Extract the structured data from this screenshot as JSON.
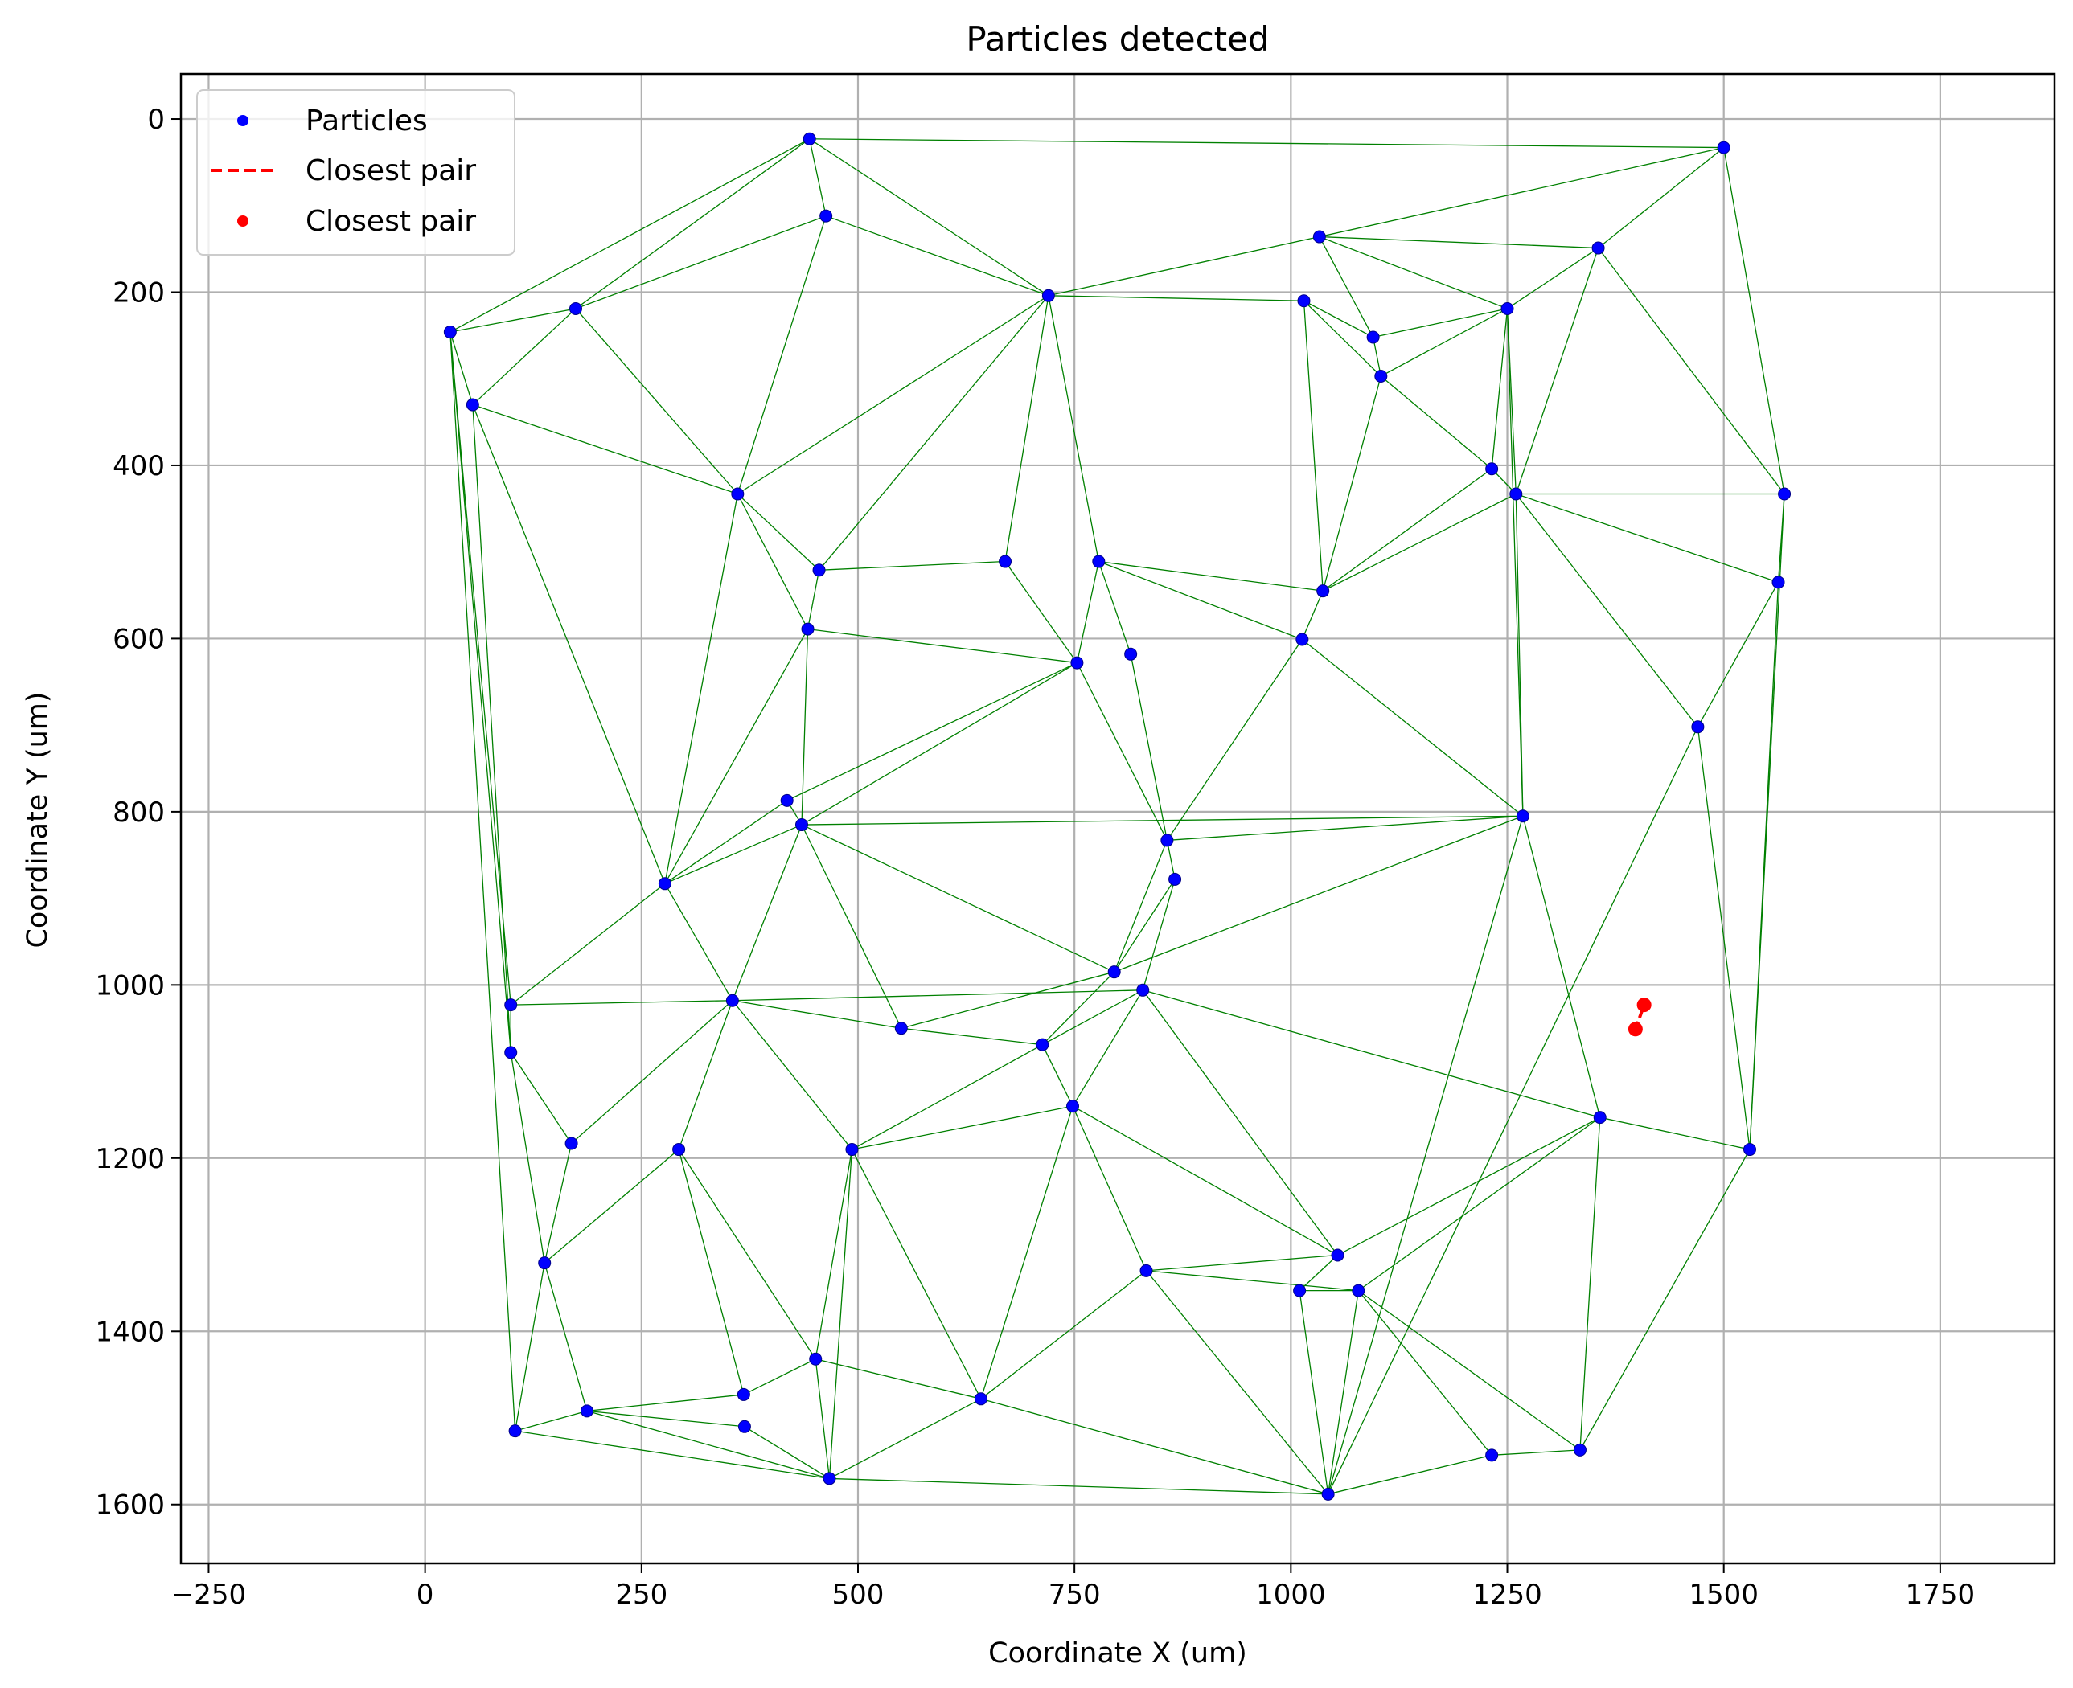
{
  "chart_data": {
    "type": "scatter",
    "title": "Particles detected",
    "xlabel": "Coordinate X (um)",
    "ylabel": "Coordinate Y (um)",
    "xlim": [
      -282,
      1882
    ],
    "ylim": [
      1668,
      -52
    ],
    "y_inverted": true,
    "grid": true,
    "legend_position": "top-left",
    "x_ticks": [
      -250,
      0,
      250,
      500,
      750,
      1000,
      1250,
      1500,
      1750
    ],
    "y_ticks": [
      0,
      200,
      400,
      600,
      800,
      1000,
      1200,
      1400,
      1600
    ],
    "legend": [
      {
        "label": "Particles",
        "marker": "dot",
        "color": "#0000ff"
      },
      {
        "label": "Closest pair",
        "marker": "dashed-line",
        "color": "#ff0000"
      },
      {
        "label": "Closest pair",
        "marker": "dot",
        "color": "#ff0000"
      }
    ],
    "colors": {
      "particles": "#0000ff",
      "particle_edge": "#00008b",
      "triangulation": "#008000",
      "closest_pair": "#ff0000",
      "grid": "#b0b0b0"
    },
    "particles": [
      [
        444,
        23
      ],
      [
        1500,
        33
      ],
      [
        463,
        112
      ],
      [
        1033,
        136
      ],
      [
        1355,
        149
      ],
      [
        720,
        204
      ],
      [
        1015,
        210
      ],
      [
        174,
        219
      ],
      [
        1250,
        219
      ],
      [
        29,
        246
      ],
      [
        1095,
        252
      ],
      [
        1104,
        297
      ],
      [
        55,
        330
      ],
      [
        1232,
        404
      ],
      [
        361,
        433
      ],
      [
        1260,
        433
      ],
      [
        1570,
        433
      ],
      [
        455,
        521
      ],
      [
        670,
        511
      ],
      [
        778,
        511
      ],
      [
        1037,
        545
      ],
      [
        1563,
        535
      ],
      [
        442,
        589
      ],
      [
        815,
        618
      ],
      [
        753,
        628
      ],
      [
        1013,
        601
      ],
      [
        1470,
        702
      ],
      [
        418,
        787
      ],
      [
        435,
        815
      ],
      [
        1268,
        805
      ],
      [
        857,
        833
      ],
      [
        277,
        883
      ],
      [
        866,
        878
      ],
      [
        796,
        985
      ],
      [
        99,
        1023
      ],
      [
        829,
        1006
      ],
      [
        355,
        1018
      ],
      [
        550,
        1050
      ],
      [
        713,
        1069
      ],
      [
        99,
        1078
      ],
      [
        748,
        1140
      ],
      [
        1357,
        1153
      ],
      [
        169,
        1183
      ],
      [
        293,
        1190
      ],
      [
        493,
        1190
      ],
      [
        1530,
        1190
      ],
      [
        138,
        1321
      ],
      [
        1054,
        1312
      ],
      [
        833,
        1330
      ],
      [
        1010,
        1353
      ],
      [
        1078,
        1353
      ],
      [
        451,
        1432
      ],
      [
        368,
        1473
      ],
      [
        642,
        1478
      ],
      [
        187,
        1492
      ],
      [
        369,
        1510
      ],
      [
        104,
        1515
      ],
      [
        1334,
        1537
      ],
      [
        1232,
        1543
      ],
      [
        467,
        1570
      ],
      [
        1043,
        1588
      ]
    ],
    "closest_pair": [
      [
        1398,
        1051
      ],
      [
        1408,
        1023
      ]
    ],
    "edges": [
      [
        0,
        1
      ],
      [
        0,
        2
      ],
      [
        0,
        9
      ],
      [
        0,
        7
      ],
      [
        0,
        5
      ],
      [
        1,
        3
      ],
      [
        1,
        4
      ],
      [
        1,
        16
      ],
      [
        2,
        7
      ],
      [
        2,
        5
      ],
      [
        2,
        14
      ],
      [
        3,
        5
      ],
      [
        3,
        8
      ],
      [
        3,
        10
      ],
      [
        3,
        4
      ],
      [
        4,
        8
      ],
      [
        4,
        15
      ],
      [
        4,
        16
      ],
      [
        5,
        6
      ],
      [
        5,
        14
      ],
      [
        5,
        17
      ],
      [
        5,
        18
      ],
      [
        5,
        19
      ],
      [
        6,
        10
      ],
      [
        6,
        11
      ],
      [
        6,
        20
      ],
      [
        7,
        9
      ],
      [
        7,
        12
      ],
      [
        7,
        14
      ],
      [
        8,
        10
      ],
      [
        8,
        11
      ],
      [
        8,
        13
      ],
      [
        8,
        15
      ],
      [
        8,
        29
      ],
      [
        9,
        12
      ],
      [
        9,
        34
      ],
      [
        9,
        39
      ],
      [
        9,
        56
      ],
      [
        10,
        11
      ],
      [
        11,
        13
      ],
      [
        11,
        20
      ],
      [
        12,
        14
      ],
      [
        12,
        31
      ],
      [
        12,
        39
      ],
      [
        13,
        15
      ],
      [
        13,
        20
      ],
      [
        14,
        17
      ],
      [
        14,
        22
      ],
      [
        14,
        31
      ],
      [
        15,
        20
      ],
      [
        15,
        16
      ],
      [
        15,
        21
      ],
      [
        15,
        26
      ],
      [
        15,
        29
      ],
      [
        16,
        21
      ],
      [
        16,
        45
      ],
      [
        17,
        18
      ],
      [
        17,
        22
      ],
      [
        18,
        24
      ],
      [
        19,
        20
      ],
      [
        19,
        23
      ],
      [
        19,
        24
      ],
      [
        19,
        25
      ],
      [
        20,
        25
      ],
      [
        21,
        26
      ],
      [
        21,
        45
      ],
      [
        22,
        24
      ],
      [
        22,
        28
      ],
      [
        22,
        31
      ],
      [
        23,
        30
      ],
      [
        24,
        27
      ],
      [
        24,
        28
      ],
      [
        24,
        30
      ],
      [
        25,
        29
      ],
      [
        25,
        30
      ],
      [
        26,
        60
      ],
      [
        26,
        45
      ],
      [
        27,
        28
      ],
      [
        27,
        31
      ],
      [
        28,
        29
      ],
      [
        28,
        31
      ],
      [
        28,
        33
      ],
      [
        28,
        36
      ],
      [
        28,
        37
      ],
      [
        29,
        30
      ],
      [
        29,
        33
      ],
      [
        29,
        41
      ],
      [
        29,
        60
      ],
      [
        29,
        61
      ],
      [
        30,
        32
      ],
      [
        30,
        33
      ],
      [
        31,
        34
      ],
      [
        31,
        36
      ],
      [
        32,
        35
      ],
      [
        32,
        33
      ],
      [
        33,
        37
      ],
      [
        33,
        38
      ],
      [
        34,
        36
      ],
      [
        34,
        39
      ],
      [
        35,
        38
      ],
      [
        35,
        40
      ],
      [
        35,
        41
      ],
      [
        35,
        47
      ],
      [
        35,
        36
      ],
      [
        36,
        37
      ],
      [
        36,
        42
      ],
      [
        36,
        43
      ],
      [
        36,
        44
      ],
      [
        37,
        38
      ],
      [
        38,
        44
      ],
      [
        38,
        40
      ],
      [
        39,
        42
      ],
      [
        39,
        46
      ],
      [
        40,
        44
      ],
      [
        40,
        47
      ],
      [
        40,
        48
      ],
      [
        40,
        53
      ],
      [
        41,
        61
      ],
      [
        41,
        45
      ],
      [
        41,
        47
      ],
      [
        41,
        50
      ],
      [
        41,
        57
      ],
      [
        42,
        46
      ],
      [
        43,
        46
      ],
      [
        43,
        52
      ],
      [
        43,
        51
      ],
      [
        44,
        53
      ],
      [
        44,
        51
      ],
      [
        44,
        59
      ],
      [
        45,
        57
      ],
      [
        45,
        61
      ],
      [
        46,
        54
      ],
      [
        46,
        56
      ],
      [
        47,
        48
      ],
      [
        47,
        49
      ],
      [
        48,
        50
      ],
      [
        48,
        53
      ],
      [
        48,
        60
      ],
      [
        49,
        50
      ],
      [
        49,
        60
      ],
      [
        50,
        57
      ],
      [
        50,
        58
      ],
      [
        50,
        60
      ],
      [
        51,
        52
      ],
      [
        51,
        53
      ],
      [
        51,
        59
      ],
      [
        52,
        54
      ],
      [
        54,
        55
      ],
      [
        54,
        59
      ],
      [
        55,
        59
      ],
      [
        56,
        54
      ],
      [
        56,
        59
      ],
      [
        57,
        58
      ],
      [
        58,
        60
      ],
      [
        59,
        53
      ],
      [
        59,
        60
      ],
      [
        53,
        60
      ]
    ]
  }
}
